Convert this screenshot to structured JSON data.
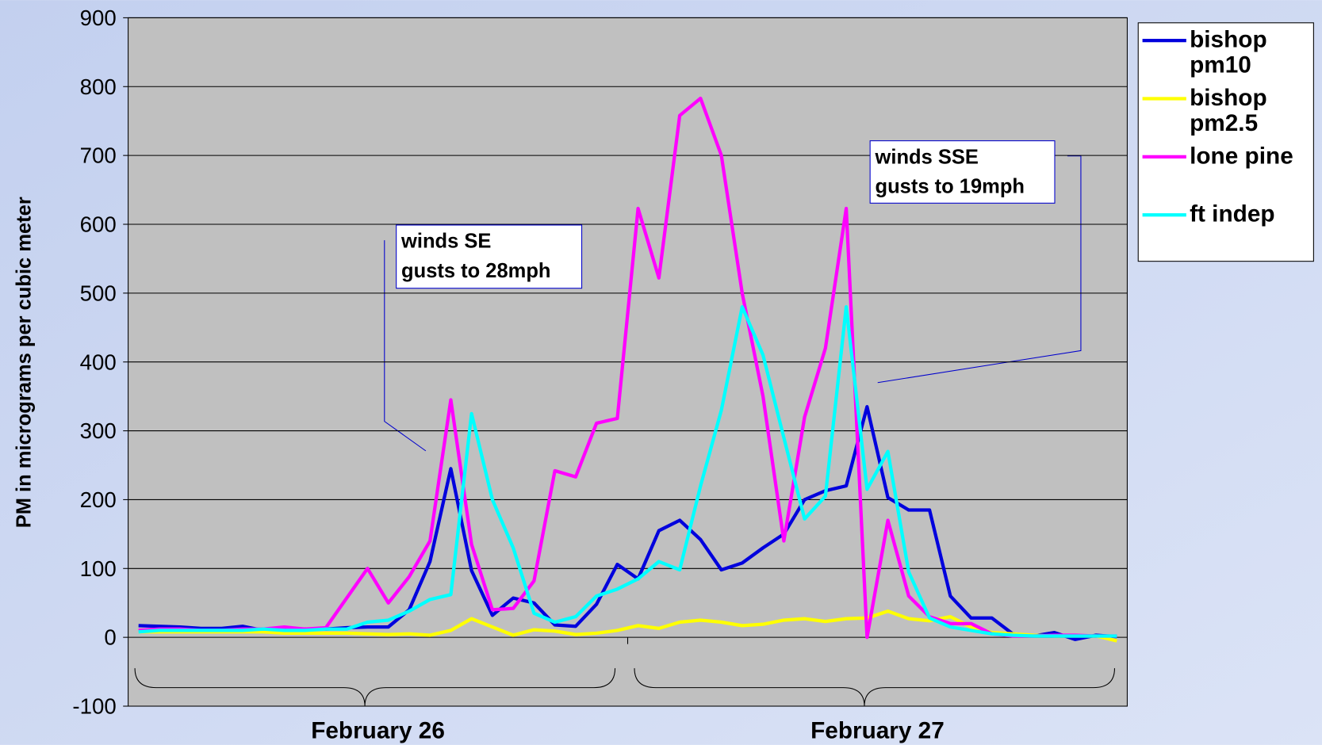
{
  "chart_data": {
    "type": "line",
    "y_axis_label": "PM in micrograms per cubic meter",
    "category_groups": [
      "February 26",
      "February 27"
    ],
    "categories": [
      null,
      null,
      null,
      null,
      null,
      null,
      null,
      null,
      null,
      null,
      null,
      null,
      null,
      null,
      null,
      null,
      null,
      null,
      null,
      null,
      null,
      null,
      null,
      null,
      null,
      null,
      null,
      null,
      null,
      null,
      null,
      null,
      null,
      null,
      null,
      null,
      null,
      null,
      null,
      null,
      null,
      null,
      null,
      null,
      null,
      null,
      null,
      null
    ],
    "ylim": [
      -100,
      900
    ],
    "yticks": [
      -100,
      0,
      100,
      200,
      300,
      400,
      500,
      600,
      700,
      800,
      900
    ],
    "grid": true,
    "legend": "right",
    "series": [
      {
        "name": "bishop pm10",
        "color": "#0000dd",
        "values": [
          17,
          16,
          15,
          13,
          13,
          16,
          10,
          10,
          12,
          12,
          14,
          15,
          15,
          40,
          110,
          245,
          97,
          32,
          57,
          50,
          18,
          16,
          48,
          106,
          85,
          155,
          170,
          142,
          98,
          108,
          130,
          150,
          200,
          213,
          220,
          335,
          203,
          185,
          185,
          60,
          28,
          28,
          5,
          2,
          7,
          -3,
          3,
          1
        ]
      },
      {
        "name": "bishop pm2.5",
        "color": "#ffff00",
        "values": [
          8,
          8,
          8,
          8,
          8,
          8,
          8,
          6,
          6,
          6,
          6,
          5,
          4,
          5,
          3,
          10,
          27,
          15,
          3,
          11,
          9,
          4,
          6,
          10,
          17,
          13,
          22,
          25,
          22,
          17,
          19,
          25,
          27,
          23,
          27,
          28,
          38,
          27,
          24,
          30,
          15,
          7,
          5,
          3,
          2,
          2,
          2,
          -5
        ]
      },
      {
        "name": "lone pine",
        "color": "#ff00ff",
        "values": [
          10,
          12,
          12,
          10,
          10,
          12,
          12,
          15,
          12,
          14,
          57,
          100,
          50,
          88,
          140,
          345,
          135,
          40,
          42,
          82,
          242,
          233,
          311,
          318,
          623,
          522,
          758,
          783,
          700,
          500,
          350,
          140,
          320,
          420,
          623,
          0,
          170,
          60,
          30,
          20,
          20,
          5,
          2,
          2,
          3,
          3,
          2,
          2
        ]
      },
      {
        "name": "ft indep",
        "color": "#00ffff",
        "values": [
          8,
          10,
          10,
          10,
          10,
          10,
          12,
          10,
          10,
          12,
          12,
          22,
          25,
          38,
          55,
          62,
          325,
          200,
          130,
          35,
          22,
          30,
          60,
          70,
          85,
          110,
          98,
          220,
          330,
          480,
          410,
          290,
          172,
          205,
          480,
          215,
          270,
          95,
          28,
          15,
          10,
          5,
          3,
          2,
          2,
          2,
          2,
          2
        ]
      }
    ],
    "annotations": [
      {
        "lines": [
          "winds SE",
          "gusts to 28mph"
        ]
      },
      {
        "lines": [
          "winds SSE",
          "gusts to 19mph"
        ]
      }
    ]
  }
}
